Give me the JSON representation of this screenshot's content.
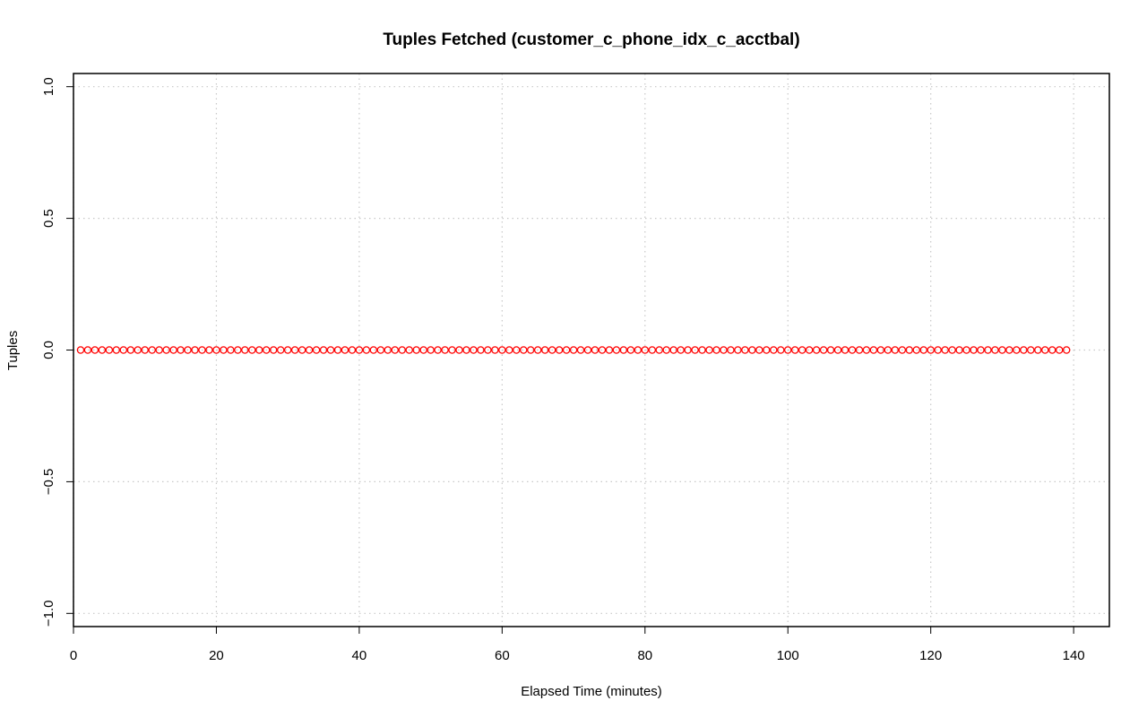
{
  "chart_data": {
    "type": "scatter",
    "title": "Tuples Fetched (customer_c_phone_idx_c_acctbal)",
    "xlabel": "Elapsed Time (minutes)",
    "ylabel": "Tuples",
    "xlim": [
      0,
      145
    ],
    "ylim": [
      -1.05,
      1.05
    ],
    "x_ticks": [
      0,
      20,
      40,
      60,
      80,
      100,
      120,
      140
    ],
    "x_tick_labels": [
      "0",
      "20",
      "40",
      "60",
      "80",
      "100",
      "120",
      "140"
    ],
    "y_ticks": [
      -1.0,
      -0.5,
      0.0,
      0.5,
      1.0
    ],
    "y_tick_labels": [
      "−1.0",
      "−0.5",
      "0.0",
      "0.5",
      "1.0"
    ],
    "grid": true,
    "marker": "open-circle",
    "colors": {
      "points": "#ff0000",
      "grid": "#c8c8c8",
      "axes": "#000000"
    },
    "series": [
      {
        "x_start": 1,
        "x_end": 139,
        "x_step": 1,
        "y": 0
      }
    ]
  }
}
